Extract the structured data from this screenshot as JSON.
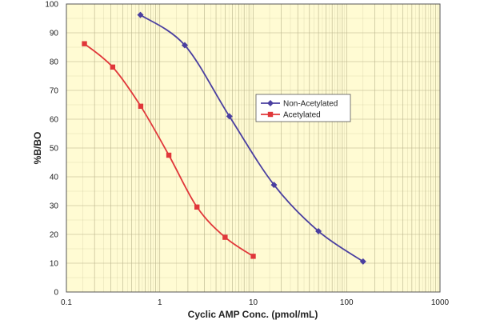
{
  "chart_data": {
    "type": "line",
    "title": "",
    "xlabel": "Cyclic AMP Conc. (pmol/mL)",
    "ylabel": "%B/BO",
    "x_scale": "log",
    "xlim": [
      0.1,
      1000
    ],
    "ylim": [
      0,
      100
    ],
    "x_ticks": [
      0.1,
      1,
      10,
      100,
      1000
    ],
    "x_tick_labels": [
      "0.1",
      "1",
      "10",
      "100",
      "1000"
    ],
    "y_ticks": [
      0,
      10,
      20,
      30,
      40,
      50,
      60,
      70,
      80,
      90,
      100
    ],
    "y_tick_labels": [
      "0",
      "10",
      "20",
      "30",
      "40",
      "50",
      "60",
      "70",
      "80",
      "90",
      "100"
    ],
    "grid": true,
    "background_color": "#fffbd3",
    "grid_color": "#b8b28a",
    "legend_position": "center-right",
    "series": [
      {
        "name": "Non-Acetylated",
        "color": "#4a3fa0",
        "marker": "diamond",
        "x": [
          0.62,
          1.85,
          5.56,
          16.7,
          50,
          150
        ],
        "y": [
          96.2,
          85.7,
          61,
          37.2,
          21.1,
          10.6
        ]
      },
      {
        "name": "Acetylated",
        "color": "#e0373a",
        "marker": "square",
        "x": [
          0.156,
          0.313,
          0.625,
          1.25,
          2.5,
          5,
          10
        ],
        "y": [
          86.2,
          78.1,
          64.5,
          47.5,
          29.5,
          19,
          12.4
        ]
      }
    ]
  }
}
